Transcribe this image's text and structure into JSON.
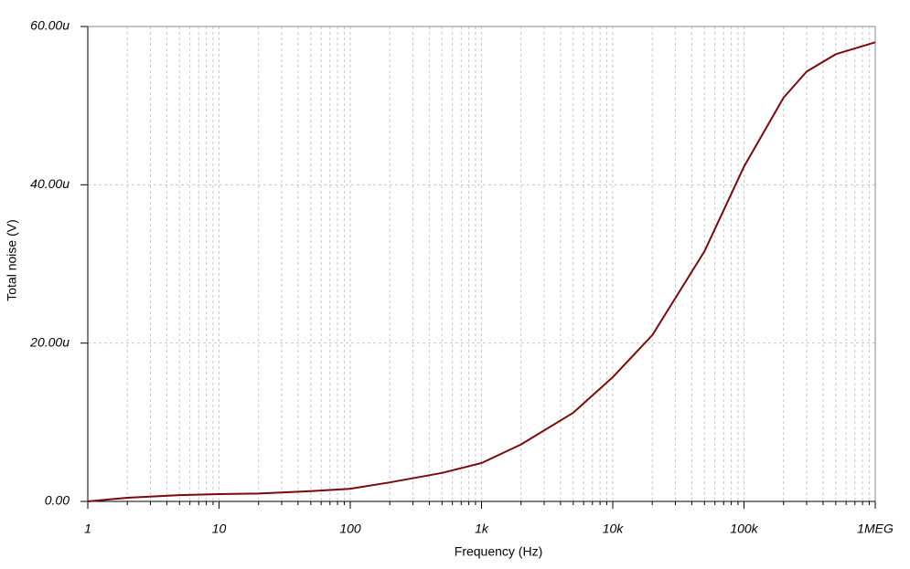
{
  "chart_data": {
    "type": "line",
    "x_label": "Frequency (Hz)",
    "y_label": "Total noise (V)",
    "x": [
      1,
      2,
      5,
      10,
      20,
      50,
      100,
      200,
      500,
      1000,
      2000,
      5000,
      10000,
      20000,
      50000,
      100000,
      200000,
      300000,
      500000,
      1000000
    ],
    "series": [
      {
        "color": "#7a0a0a",
        "values": [
          0,
          0.46,
          0.8,
          0.92,
          1.0,
          1.3,
          1.6,
          2.4,
          3.6,
          4.85,
          7.2,
          11.2,
          15.7,
          21,
          31.6,
          42.3,
          51,
          54.3,
          56.5,
          58
        ]
      }
    ],
    "xlim": [
      1,
      1000000
    ],
    "x_log": true,
    "xticks": [
      1,
      10,
      100,
      {
        "value": 1000,
        "label": "1k"
      },
      {
        "value": 10000,
        "label": "10k"
      },
      {
        "value": 100000,
        "label": "100k"
      },
      {
        "value": 1000000,
        "label": "1MEG"
      }
    ],
    "ylim": [
      0,
      60
    ],
    "yticks": [
      {
        "value": 0,
        "label": "0.00"
      },
      {
        "value": 20,
        "label": "20.00u"
      },
      {
        "value": 40,
        "label": "40.00u"
      },
      {
        "value": 60,
        "label": "60.00u"
      }
    ],
    "grid": true
  }
}
